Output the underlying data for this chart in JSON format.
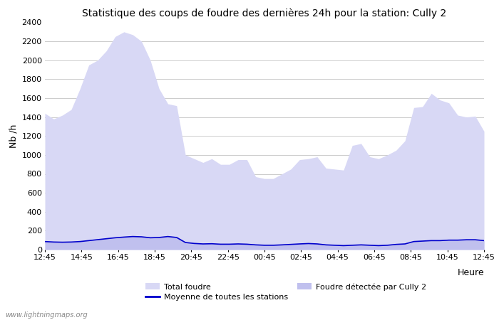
{
  "title": "Statistique des coups de foudre des dernières 24h pour la station: Cully 2",
  "xlabel": "Heure",
  "ylabel": "Nb /h",
  "ylim": [
    0,
    2400
  ],
  "yticks": [
    0,
    200,
    400,
    600,
    800,
    1000,
    1200,
    1400,
    1600,
    1800,
    2000,
    2200,
    2400
  ],
  "xtick_labels": [
    "12:45",
    "14:45",
    "16:45",
    "18:45",
    "20:45",
    "22:45",
    "00:45",
    "02:45",
    "04:45",
    "06:45",
    "08:45",
    "10:45",
    "12:45"
  ],
  "bg_color": "#ffffff",
  "grid_color": "#cccccc",
  "fill_total_color": "#d8d8f5",
  "fill_cully_color": "#c0c0ee",
  "line_color": "#0000cc",
  "watermark": "www.lightningmaps.org",
  "legend_total": "Total foudre",
  "legend_moyenne": "Moyenne de toutes les stations",
  "legend_cully": "Foudre détectée par Cully 2",
  "total_foudre": [
    1440,
    1380,
    1420,
    1480,
    1700,
    1950,
    2000,
    2100,
    2250,
    2300,
    2270,
    2200,
    2000,
    1700,
    1540,
    1520,
    1000,
    960,
    920,
    960,
    900,
    900,
    950,
    950,
    770,
    750,
    750,
    800,
    850,
    950,
    960,
    980,
    860,
    850,
    840,
    1100,
    1120,
    980,
    960,
    1000,
    1050,
    1150,
    1500,
    1510,
    1650,
    1580,
    1550,
    1420,
    1400,
    1410,
    1250
  ],
  "cully_foudre": [
    90,
    85,
    80,
    85,
    90,
    100,
    110,
    120,
    130,
    140,
    145,
    140,
    130,
    135,
    145,
    135,
    80,
    70,
    65,
    65,
    60,
    60,
    65,
    60,
    55,
    50,
    50,
    55,
    60,
    65,
    70,
    65,
    55,
    50,
    45,
    50,
    55,
    50,
    45,
    50,
    60,
    65,
    90,
    95,
    100,
    100,
    105,
    105,
    110,
    110,
    100
  ],
  "moyenne_line": [
    85,
    80,
    78,
    80,
    85,
    95,
    105,
    115,
    125,
    132,
    138,
    135,
    125,
    128,
    138,
    128,
    75,
    65,
    60,
    62,
    57,
    57,
    60,
    57,
    50,
    46,
    46,
    50,
    55,
    60,
    64,
    60,
    50,
    46,
    42,
    46,
    50,
    46,
    42,
    46,
    55,
    60,
    85,
    90,
    95,
    95,
    100,
    100,
    104,
    104,
    95
  ]
}
